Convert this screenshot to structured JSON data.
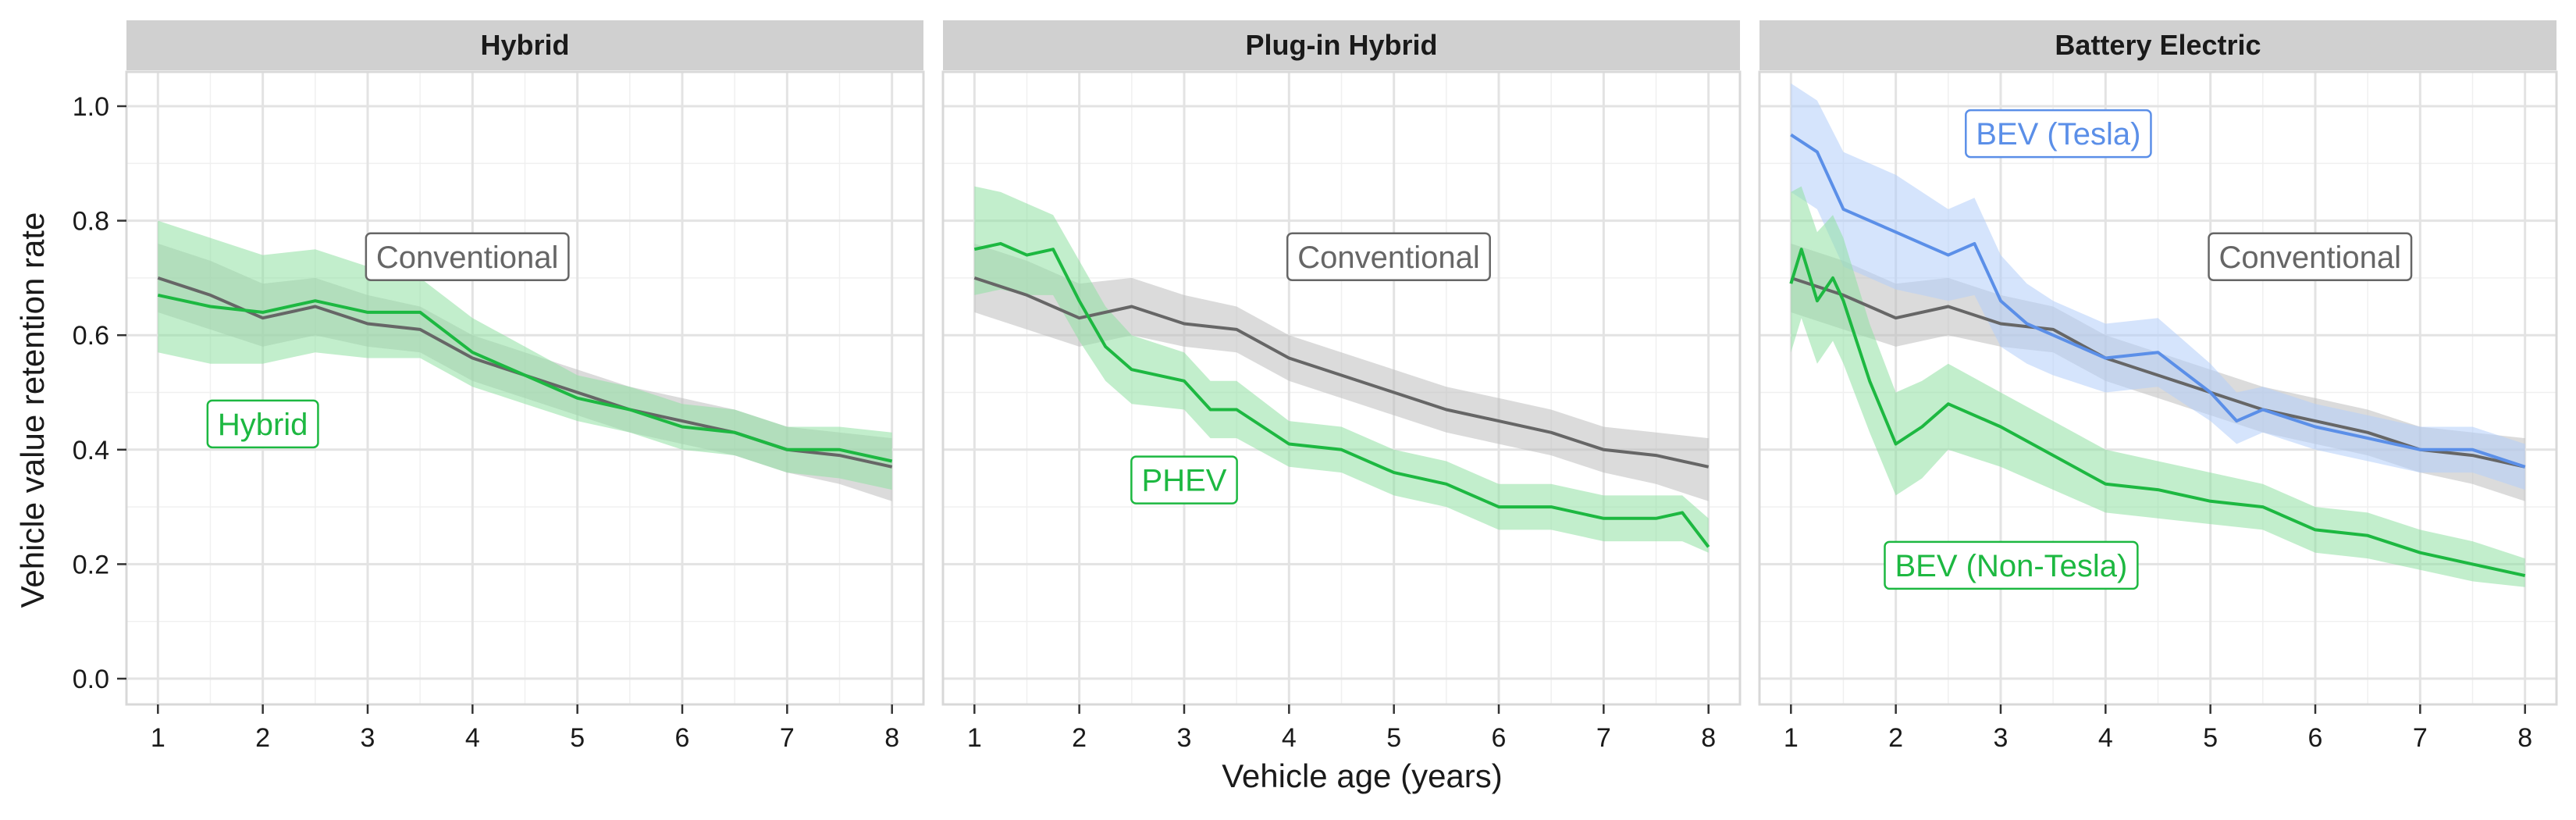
{
  "chart_data": {
    "type": "line",
    "xlabel": "Vehicle age (years)",
    "ylabel": "Vehicle value retention rate",
    "xlim": [
      0.7,
      8.3
    ],
    "ylim": [
      -0.045,
      1.06
    ],
    "x_ticks": [
      1,
      2,
      3,
      4,
      5,
      6,
      7,
      8
    ],
    "y_ticks": [
      0.0,
      0.2,
      0.4,
      0.6,
      0.8,
      1.0
    ],
    "y_tick_labels": [
      "0.0",
      "0.2",
      "0.4",
      "0.6",
      "0.8",
      "1.0"
    ],
    "grid": true,
    "colors": {
      "conventional": "#666666",
      "conventional_band": "#bdbdbd",
      "green": "#1db841",
      "green_band": "#8fe0a3",
      "blue": "#5b8fe8",
      "blue_band": "#b3cdfa"
    },
    "panels": [
      {
        "title": "Hybrid",
        "series": [
          {
            "name": "Conventional",
            "color": "#666666",
            "band_color": "#bdbdbd",
            "x": [
              1,
              1.5,
              2,
              2.5,
              3,
              3.5,
              4,
              4.5,
              5,
              5.5,
              6,
              6.5,
              7,
              7.5,
              8
            ],
            "y": [
              0.7,
              0.67,
              0.63,
              0.65,
              0.62,
              0.61,
              0.56,
              0.53,
              0.5,
              0.47,
              0.45,
              0.43,
              0.4,
              0.39,
              0.37
            ],
            "lower": [
              0.64,
              0.61,
              0.58,
              0.6,
              0.58,
              0.57,
              0.52,
              0.49,
              0.46,
              0.43,
              0.41,
              0.39,
              0.36,
              0.34,
              0.31
            ],
            "upper": [
              0.76,
              0.73,
              0.69,
              0.7,
              0.67,
              0.65,
              0.6,
              0.57,
              0.54,
              0.51,
              0.49,
              0.47,
              0.44,
              0.43,
              0.42
            ]
          },
          {
            "name": "Hybrid",
            "color": "#1db841",
            "band_color": "#8fe0a3",
            "x": [
              1,
              1.5,
              2,
              2.5,
              3,
              3.5,
              4,
              4.5,
              5,
              5.5,
              6,
              6.5,
              7,
              7.5,
              8
            ],
            "y": [
              0.67,
              0.65,
              0.64,
              0.66,
              0.64,
              0.64,
              0.57,
              0.53,
              0.49,
              0.47,
              0.44,
              0.43,
              0.4,
              0.4,
              0.38
            ],
            "lower": [
              0.57,
              0.55,
              0.55,
              0.57,
              0.56,
              0.56,
              0.51,
              0.48,
              0.45,
              0.43,
              0.4,
              0.39,
              0.36,
              0.35,
              0.33
            ],
            "upper": [
              0.8,
              0.77,
              0.74,
              0.75,
              0.72,
              0.7,
              0.63,
              0.58,
              0.53,
              0.51,
              0.48,
              0.47,
              0.44,
              0.44,
              0.43
            ]
          }
        ],
        "annotations": [
          {
            "text": "Conventional",
            "x": 3.95,
            "y": 0.737,
            "color": "#666666"
          },
          {
            "text": "Hybrid",
            "x": 2.0,
            "y": 0.445,
            "color": "#1db841"
          }
        ]
      },
      {
        "title": "Plug-in Hybrid",
        "series": [
          {
            "name": "Conventional",
            "color": "#666666",
            "band_color": "#bdbdbd",
            "x": [
              1,
              1.5,
              2,
              2.5,
              3,
              3.5,
              4,
              4.5,
              5,
              5.5,
              6,
              6.5,
              7,
              7.5,
              8
            ],
            "y": [
              0.7,
              0.67,
              0.63,
              0.65,
              0.62,
              0.61,
              0.56,
              0.53,
              0.5,
              0.47,
              0.45,
              0.43,
              0.4,
              0.39,
              0.37
            ],
            "lower": [
              0.64,
              0.61,
              0.58,
              0.6,
              0.58,
              0.57,
              0.52,
              0.49,
              0.46,
              0.43,
              0.41,
              0.39,
              0.36,
              0.34,
              0.31
            ],
            "upper": [
              0.76,
              0.73,
              0.69,
              0.7,
              0.67,
              0.65,
              0.6,
              0.57,
              0.54,
              0.51,
              0.49,
              0.47,
              0.44,
              0.43,
              0.42
            ]
          },
          {
            "name": "PHEV",
            "color": "#1db841",
            "band_color": "#8fe0a3",
            "x": [
              1,
              1.25,
              1.5,
              1.75,
              2,
              2.25,
              2.5,
              3,
              3.25,
              3.5,
              4,
              4.5,
              5,
              5.5,
              6,
              6.5,
              7,
              7.5,
              7.75,
              8
            ],
            "y": [
              0.75,
              0.76,
              0.74,
              0.75,
              0.66,
              0.58,
              0.54,
              0.52,
              0.47,
              0.47,
              0.41,
              0.4,
              0.36,
              0.34,
              0.3,
              0.3,
              0.28,
              0.28,
              0.29,
              0.23
            ],
            "lower": [
              0.67,
              0.68,
              0.67,
              0.67,
              0.59,
              0.52,
              0.48,
              0.47,
              0.42,
              0.42,
              0.37,
              0.36,
              0.32,
              0.3,
              0.26,
              0.26,
              0.24,
              0.24,
              0.24,
              0.22
            ],
            "upper": [
              0.86,
              0.85,
              0.83,
              0.81,
              0.73,
              0.65,
              0.6,
              0.57,
              0.52,
              0.52,
              0.45,
              0.44,
              0.4,
              0.38,
              0.34,
              0.34,
              0.32,
              0.32,
              0.32,
              0.28
            ]
          }
        ],
        "annotations": [
          {
            "text": "Conventional",
            "x": 4.95,
            "y": 0.737,
            "color": "#666666"
          },
          {
            "text": "PHEV",
            "x": 3.0,
            "y": 0.347,
            "color": "#1db841"
          }
        ]
      },
      {
        "title": "Battery Electric",
        "series": [
          {
            "name": "Conventional",
            "color": "#666666",
            "band_color": "#bdbdbd",
            "x": [
              1,
              1.5,
              2,
              2.5,
              3,
              3.5,
              4,
              4.5,
              5,
              5.5,
              6,
              6.5,
              7,
              7.5,
              8
            ],
            "y": [
              0.7,
              0.67,
              0.63,
              0.65,
              0.62,
              0.61,
              0.56,
              0.53,
              0.5,
              0.47,
              0.45,
              0.43,
              0.4,
              0.39,
              0.37
            ],
            "lower": [
              0.64,
              0.61,
              0.58,
              0.6,
              0.58,
              0.57,
              0.52,
              0.49,
              0.46,
              0.43,
              0.41,
              0.39,
              0.36,
              0.34,
              0.31
            ],
            "upper": [
              0.76,
              0.73,
              0.69,
              0.7,
              0.67,
              0.65,
              0.6,
              0.57,
              0.54,
              0.51,
              0.49,
              0.47,
              0.44,
              0.43,
              0.42
            ]
          },
          {
            "name": "BEV (Tesla)",
            "color": "#5b8fe8",
            "band_color": "#b3cdfa",
            "x": [
              1,
              1.25,
              1.5,
              1.75,
              2,
              2.25,
              2.5,
              2.75,
              3,
              3.25,
              3.5,
              4,
              4.5,
              5,
              5.25,
              5.5,
              6,
              6.5,
              7,
              7.5,
              8
            ],
            "y": [
              0.95,
              0.92,
              0.82,
              0.8,
              0.78,
              0.76,
              0.74,
              0.76,
              0.66,
              0.62,
              0.6,
              0.56,
              0.57,
              0.5,
              0.45,
              0.47,
              0.44,
              0.42,
              0.4,
              0.4,
              0.37
            ],
            "lower": [
              0.85,
              0.82,
              0.72,
              0.7,
              0.68,
              0.67,
              0.66,
              0.67,
              0.58,
              0.55,
              0.53,
              0.5,
              0.51,
              0.45,
              0.41,
              0.43,
              0.4,
              0.38,
              0.36,
              0.36,
              0.33
            ],
            "upper": [
              1.04,
              1.01,
              0.92,
              0.9,
              0.88,
              0.85,
              0.82,
              0.84,
              0.74,
              0.69,
              0.66,
              0.62,
              0.63,
              0.55,
              0.5,
              0.51,
              0.48,
              0.46,
              0.44,
              0.44,
              0.41
            ]
          },
          {
            "name": "BEV (Non-Tesla)",
            "color": "#1db841",
            "band_color": "#8fe0a3",
            "x": [
              1,
              1.1,
              1.25,
              1.4,
              1.5,
              1.75,
              2,
              2.25,
              2.5,
              3,
              3.5,
              4,
              4.5,
              5,
              5.5,
              6,
              6.5,
              7,
              7.5,
              8
            ],
            "y": [
              0.69,
              0.75,
              0.66,
              0.7,
              0.66,
              0.52,
              0.41,
              0.44,
              0.48,
              0.44,
              0.39,
              0.34,
              0.33,
              0.31,
              0.3,
              0.26,
              0.25,
              0.22,
              0.2,
              0.18
            ],
            "lower": [
              0.57,
              0.63,
              0.55,
              0.59,
              0.55,
              0.43,
              0.32,
              0.35,
              0.4,
              0.37,
              0.33,
              0.29,
              0.28,
              0.27,
              0.26,
              0.22,
              0.21,
              0.19,
              0.17,
              0.16
            ],
            "upper": [
              0.85,
              0.86,
              0.78,
              0.81,
              0.77,
              0.62,
              0.5,
              0.52,
              0.55,
              0.5,
              0.45,
              0.4,
              0.38,
              0.36,
              0.34,
              0.3,
              0.29,
              0.26,
              0.24,
              0.21
            ]
          }
        ],
        "annotations": [
          {
            "text": "BEV (Tesla)",
            "x": 3.55,
            "y": 0.952,
            "color": "#5b8fe8"
          },
          {
            "text": "Conventional",
            "x": 5.95,
            "y": 0.737,
            "color": "#666666"
          },
          {
            "text": "BEV (Non-Tesla)",
            "x": 3.1,
            "y": 0.198,
            "color": "#1db841"
          }
        ]
      }
    ]
  }
}
